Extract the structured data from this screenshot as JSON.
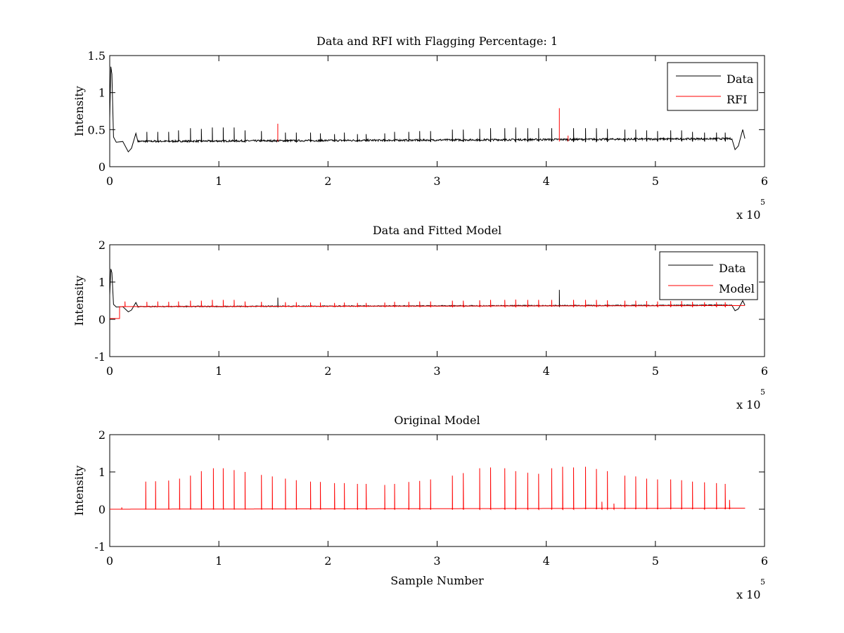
{
  "chart_data": [
    {
      "type": "line",
      "title": "Data and RFI with Flagging Percentage: 1",
      "xlabel": "",
      "ylabel": "Intensity",
      "xlim": [
        0,
        6
      ],
      "ylim": [
        0,
        1.5
      ],
      "xticks": [
        0,
        1,
        2,
        3,
        4,
        5,
        6
      ],
      "yticks": [
        0,
        0.5,
        1,
        1.5
      ],
      "ytick_labels": [
        "0",
        "0.5",
        "1",
        "1.5"
      ],
      "x_multiplier": "x 10",
      "x_multiplier_exp": "5",
      "grid": false,
      "legend_position": "top-right",
      "series": [
        {
          "name": "Data",
          "color": "#000000",
          "baseline": 0.34,
          "start_curve": [
            [
              0,
              0.65
            ],
            [
              0.01,
              1.35
            ],
            [
              0.02,
              1.25
            ],
            [
              0.035,
              0.4
            ],
            [
              0.06,
              0.33
            ],
            [
              0.12,
              0.34
            ],
            [
              0.17,
              0.2
            ],
            [
              0.2,
              0.25
            ],
            [
              0.24,
              0.45
            ],
            [
              0.26,
              0.33
            ]
          ],
          "end_curve": [
            [
              5.7,
              0.38
            ],
            [
              5.73,
              0.23
            ],
            [
              5.76,
              0.28
            ],
            [
              5.8,
              0.5
            ],
            [
              5.82,
              0.38
            ]
          ],
          "x_end": 5.82,
          "spikes": [
            [
              0.14,
              0.52
            ],
            [
              0.34,
              0.47
            ],
            [
              0.44,
              0.47
            ],
            [
              0.54,
              0.47
            ],
            [
              0.63,
              0.49
            ],
            [
              0.74,
              0.52
            ],
            [
              0.84,
              0.51
            ],
            [
              0.94,
              0.53
            ],
            [
              1.04,
              0.53
            ],
            [
              1.14,
              0.53
            ],
            [
              1.24,
              0.49
            ],
            [
              1.39,
              0.48
            ],
            [
              1.61,
              0.46
            ],
            [
              1.71,
              0.46
            ],
            [
              1.84,
              0.46
            ],
            [
              1.93,
              0.45
            ],
            [
              2.06,
              0.44
            ],
            [
              2.15,
              0.46
            ],
            [
              2.27,
              0.44
            ],
            [
              2.35,
              0.44
            ],
            [
              2.52,
              0.45
            ],
            [
              2.61,
              0.47
            ],
            [
              2.74,
              0.47
            ],
            [
              2.84,
              0.48
            ],
            [
              2.94,
              0.48
            ],
            [
              3.14,
              0.5
            ],
            [
              3.24,
              0.5
            ],
            [
              3.39,
              0.51
            ],
            [
              3.49,
              0.52
            ],
            [
              3.62,
              0.52
            ],
            [
              3.72,
              0.53
            ],
            [
              3.83,
              0.52
            ],
            [
              3.93,
              0.52
            ],
            [
              4.05,
              0.52
            ],
            [
              4.25,
              0.52
            ],
            [
              4.36,
              0.52
            ],
            [
              4.46,
              0.52
            ],
            [
              4.56,
              0.51
            ],
            [
              4.72,
              0.5
            ],
            [
              4.82,
              0.5
            ],
            [
              4.92,
              0.49
            ],
            [
              5.02,
              0.48
            ],
            [
              5.14,
              0.49
            ],
            [
              5.24,
              0.49
            ],
            [
              5.34,
              0.47
            ],
            [
              5.45,
              0.46
            ],
            [
              5.56,
              0.46
            ],
            [
              5.64,
              0.46
            ]
          ]
        },
        {
          "name": "RFI",
          "color": "#ff0000",
          "spikes": [
            [
              1.54,
              0.58
            ],
            [
              4.12,
              0.79
            ],
            [
              4.2,
              0.42
            ]
          ]
        }
      ]
    },
    {
      "type": "line",
      "title": "Data and Fitted Model",
      "xlabel": "",
      "ylabel": "Intensity",
      "xlim": [
        0,
        6
      ],
      "ylim": [
        -1,
        2
      ],
      "xticks": [
        0,
        1,
        2,
        3,
        4,
        5,
        6
      ],
      "yticks": [
        -1,
        0,
        1,
        2
      ],
      "ytick_labels": [
        "-1",
        "0",
        "1",
        "2"
      ],
      "x_multiplier": "x 10",
      "x_multiplier_exp": "5",
      "grid": false,
      "legend_position": "top-right",
      "series": [
        {
          "name": "Data",
          "color": "#000000",
          "baseline": 0.34,
          "start_curve": [
            [
              0,
              0.65
            ],
            [
              0.01,
              1.35
            ],
            [
              0.02,
              1.25
            ],
            [
              0.035,
              0.4
            ],
            [
              0.06,
              0.33
            ],
            [
              0.12,
              0.34
            ],
            [
              0.17,
              0.2
            ],
            [
              0.2,
              0.25
            ],
            [
              0.24,
              0.45
            ],
            [
              0.26,
              0.33
            ]
          ],
          "end_curve": [
            [
              5.7,
              0.38
            ],
            [
              5.73,
              0.23
            ],
            [
              5.76,
              0.28
            ],
            [
              5.8,
              0.5
            ],
            [
              5.82,
              0.38
            ]
          ],
          "x_end": 5.82,
          "spikes": [
            [
              1.54,
              0.58
            ],
            [
              4.12,
              0.79
            ]
          ]
        },
        {
          "name": "Model",
          "color": "#ff0000",
          "baseline": 0.34,
          "x_start": 0.09,
          "pre_value": 0.02,
          "x_end": 5.82,
          "spikes": [
            [
              0.14,
              0.48
            ],
            [
              0.34,
              0.47
            ],
            [
              0.44,
              0.48
            ],
            [
              0.54,
              0.47
            ],
            [
              0.63,
              0.48
            ],
            [
              0.74,
              0.5
            ],
            [
              0.84,
              0.5
            ],
            [
              0.94,
              0.52
            ],
            [
              1.04,
              0.52
            ],
            [
              1.14,
              0.52
            ],
            [
              1.24,
              0.48
            ],
            [
              1.39,
              0.47
            ],
            [
              1.61,
              0.46
            ],
            [
              1.71,
              0.46
            ],
            [
              1.84,
              0.45
            ],
            [
              1.93,
              0.45
            ],
            [
              2.06,
              0.44
            ],
            [
              2.15,
              0.45
            ],
            [
              2.27,
              0.44
            ],
            [
              2.35,
              0.44
            ],
            [
              2.52,
              0.45
            ],
            [
              2.61,
              0.47
            ],
            [
              2.74,
              0.47
            ],
            [
              2.84,
              0.48
            ],
            [
              2.94,
              0.48
            ],
            [
              3.14,
              0.5
            ],
            [
              3.24,
              0.5
            ],
            [
              3.39,
              0.51
            ],
            [
              3.49,
              0.52
            ],
            [
              3.62,
              0.52
            ],
            [
              3.72,
              0.53
            ],
            [
              3.83,
              0.52
            ],
            [
              3.93,
              0.52
            ],
            [
              4.05,
              0.52
            ],
            [
              4.25,
              0.52
            ],
            [
              4.36,
              0.52
            ],
            [
              4.46,
              0.52
            ],
            [
              4.56,
              0.51
            ],
            [
              4.72,
              0.5
            ],
            [
              4.82,
              0.5
            ],
            [
              4.92,
              0.49
            ],
            [
              5.02,
              0.48
            ],
            [
              5.14,
              0.49
            ],
            [
              5.24,
              0.49
            ],
            [
              5.34,
              0.47
            ],
            [
              5.45,
              0.46
            ],
            [
              5.56,
              0.46
            ],
            [
              5.64,
              0.46
            ]
          ]
        }
      ]
    },
    {
      "type": "line",
      "title": "Original Model",
      "xlabel": "Sample Number",
      "ylabel": "Intensity",
      "xlim": [
        0,
        6
      ],
      "ylim": [
        -1,
        2
      ],
      "xticks": [
        0,
        1,
        2,
        3,
        4,
        5,
        6
      ],
      "yticks": [
        -1,
        0,
        1,
        2
      ],
      "ytick_labels": [
        "-1",
        "0",
        "1",
        "2"
      ],
      "x_multiplier": "x 10",
      "x_multiplier_exp": "5",
      "grid": false,
      "series": [
        {
          "color": "#ff0000",
          "baseline": 0.0,
          "x_end": 5.82,
          "spikes": [
            [
              0.11,
              0.05
            ],
            [
              0.33,
              0.74
            ],
            [
              0.42,
              0.75
            ],
            [
              0.54,
              0.77
            ],
            [
              0.64,
              0.82
            ],
            [
              0.74,
              0.9
            ],
            [
              0.84,
              1.02
            ],
            [
              0.95,
              1.1
            ],
            [
              1.04,
              1.1
            ],
            [
              1.14,
              1.05
            ],
            [
              1.24,
              1.0
            ],
            [
              1.39,
              0.92
            ],
            [
              1.49,
              0.88
            ],
            [
              1.61,
              0.82
            ],
            [
              1.71,
              0.78
            ],
            [
              1.84,
              0.74
            ],
            [
              1.93,
              0.73
            ],
            [
              2.06,
              0.7
            ],
            [
              2.15,
              0.7
            ],
            [
              2.27,
              0.68
            ],
            [
              2.35,
              0.68
            ],
            [
              2.52,
              0.65
            ],
            [
              2.61,
              0.68
            ],
            [
              2.74,
              0.73
            ],
            [
              2.84,
              0.76
            ],
            [
              2.94,
              0.8
            ],
            [
              3.14,
              0.9
            ],
            [
              3.24,
              0.97
            ],
            [
              3.39,
              1.1
            ],
            [
              3.49,
              1.12
            ],
            [
              3.62,
              1.1
            ],
            [
              3.72,
              1.02
            ],
            [
              3.83,
              0.98
            ],
            [
              3.93,
              0.95
            ],
            [
              4.05,
              1.1
            ],
            [
              4.15,
              1.14
            ],
            [
              4.25,
              1.12
            ],
            [
              4.36,
              1.14
            ],
            [
              4.46,
              1.08
            ],
            [
              4.51,
              0.2
            ],
            [
              4.56,
              1.02
            ],
            [
              4.62,
              0.15
            ],
            [
              4.72,
              0.9
            ],
            [
              4.82,
              0.88
            ],
            [
              4.92,
              0.82
            ],
            [
              5.02,
              0.8
            ],
            [
              5.14,
              0.8
            ],
            [
              5.24,
              0.78
            ],
            [
              5.34,
              0.74
            ],
            [
              5.45,
              0.72
            ],
            [
              5.56,
              0.7
            ],
            [
              5.64,
              0.68
            ],
            [
              5.68,
              0.25
            ]
          ]
        }
      ]
    }
  ]
}
